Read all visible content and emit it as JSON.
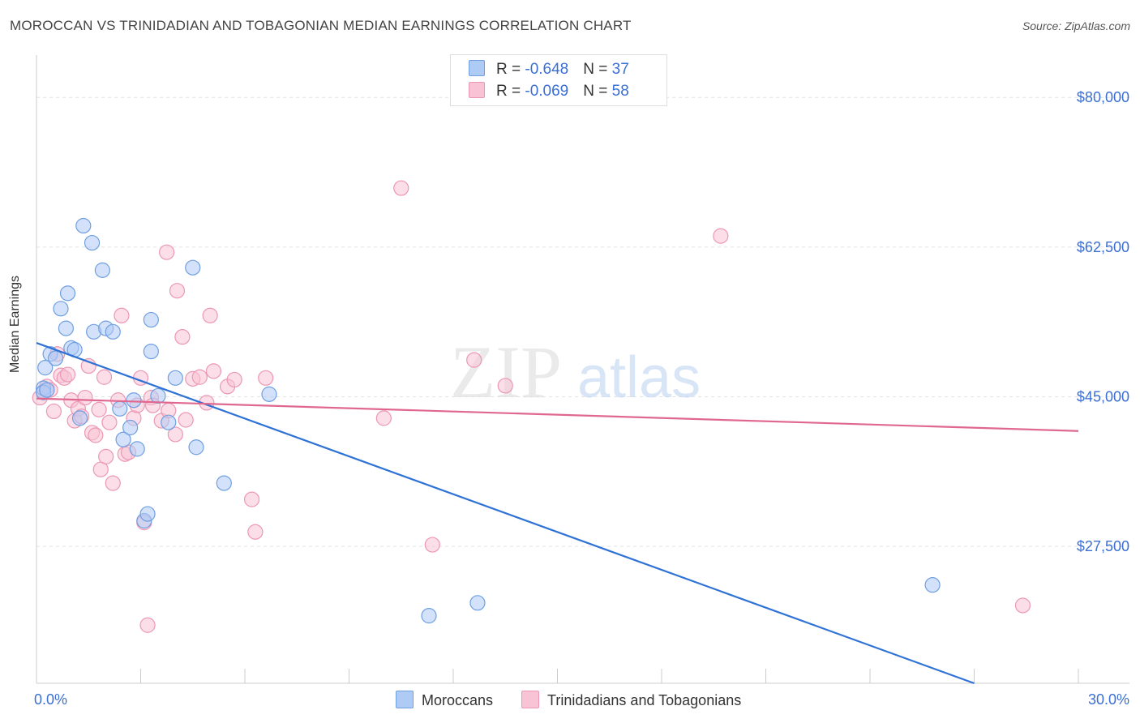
{
  "title": "MOROCCAN VS TRINIDADIAN AND TOBAGONIAN MEDIAN EARNINGS CORRELATION CHART",
  "source": "Source: ZipAtlas.com",
  "watermark": {
    "part1": "ZIP",
    "part2": "atlas"
  },
  "legend": {
    "moroccans": {
      "r_label": "R = ",
      "r_value": "-0.648",
      "n_label": "N = ",
      "n_value": "37"
    },
    "trinidadians": {
      "r_label": "R = ",
      "r_value": "-0.069",
      "n_label": "N = ",
      "n_value": "58"
    }
  },
  "bottom_legend": {
    "moroccans": "Moroccans",
    "trinidadians": "Trinidadians and Tobagonians"
  },
  "colors": {
    "blue_fill": "#aecbf5",
    "blue_stroke": "#6f9fe0",
    "blue_line": "#2f72d6",
    "pink_fill": "#f8c3d4",
    "pink_stroke": "#ec97b4",
    "pink_line": "#e0688f",
    "axis_text": "#3b6fd4",
    "grid": "#e2e2e2"
  },
  "chart_data": {
    "type": "scatter",
    "title": "MOROCCAN VS TRINIDADIAN AND TOBAGONIAN MEDIAN EARNINGS CORRELATION CHART",
    "xlabel": "",
    "ylabel": "Median Earnings",
    "xlim": [
      0,
      30
    ],
    "ylim": [
      11500,
      84000
    ],
    "x_tick_labels": [
      "0.0%",
      "30.0%"
    ],
    "y_ticks": [
      27500,
      45000,
      62500,
      80000
    ],
    "y_tick_labels": [
      "$27,500",
      "$45,000",
      "$62,500",
      "$80,000"
    ],
    "series": [
      {
        "name": "Moroccans",
        "r": -0.648,
        "n": 37,
        "trend": {
          "x": [
            0,
            27.0
          ],
          "y": [
            51300,
            11500
          ]
        },
        "points": [
          [
            0.2,
            46000
          ],
          [
            0.2,
            45500
          ],
          [
            0.25,
            48400
          ],
          [
            0.3,
            45800
          ],
          [
            0.4,
            50000
          ],
          [
            0.55,
            49500
          ],
          [
            0.7,
            55300
          ],
          [
            0.85,
            53000
          ],
          [
            0.9,
            57100
          ],
          [
            1.0,
            50700
          ],
          [
            1.1,
            50500
          ],
          [
            1.35,
            65000
          ],
          [
            1.6,
            63000
          ],
          [
            1.65,
            52600
          ],
          [
            1.9,
            59800
          ],
          [
            2.0,
            53000
          ],
          [
            2.2,
            52600
          ],
          [
            2.4,
            43600
          ],
          [
            2.5,
            40000
          ],
          [
            2.7,
            41400
          ],
          [
            2.8,
            44600
          ],
          [
            2.9,
            38900
          ],
          [
            3.1,
            30500
          ],
          [
            3.2,
            31300
          ],
          [
            3.3,
            54000
          ],
          [
            3.3,
            50300
          ],
          [
            3.5,
            45100
          ],
          [
            3.8,
            42000
          ],
          [
            4.0,
            47200
          ],
          [
            4.5,
            60100
          ],
          [
            4.6,
            39100
          ],
          [
            5.4,
            34900
          ],
          [
            6.7,
            45300
          ],
          [
            11.3,
            19400
          ],
          [
            12.7,
            20900
          ],
          [
            25.8,
            23000
          ],
          [
            1.25,
            42500
          ]
        ]
      },
      {
        "name": "Trinidadians and Tobagonians",
        "r": -0.069,
        "n": 58,
        "trend": {
          "x": [
            0,
            30.0
          ],
          "y": [
            44800,
            41000
          ]
        },
        "points": [
          [
            0.1,
            44900
          ],
          [
            0.2,
            45600
          ],
          [
            0.3,
            46200
          ],
          [
            0.4,
            45800
          ],
          [
            0.5,
            43300
          ],
          [
            0.6,
            50000
          ],
          [
            0.7,
            47500
          ],
          [
            0.8,
            47200
          ],
          [
            0.9,
            47600
          ],
          [
            1.0,
            44600
          ],
          [
            1.1,
            42200
          ],
          [
            1.2,
            43600
          ],
          [
            1.3,
            42700
          ],
          [
            1.4,
            44900
          ],
          [
            1.5,
            48600
          ],
          [
            1.6,
            40800
          ],
          [
            1.7,
            40500
          ],
          [
            1.8,
            43500
          ],
          [
            1.85,
            36500
          ],
          [
            1.95,
            47300
          ],
          [
            2.0,
            38000
          ],
          [
            2.1,
            42000
          ],
          [
            2.2,
            34900
          ],
          [
            2.35,
            44600
          ],
          [
            2.45,
            54500
          ],
          [
            2.55,
            38300
          ],
          [
            2.65,
            38500
          ],
          [
            2.8,
            42500
          ],
          [
            2.9,
            44000
          ],
          [
            3.0,
            47200
          ],
          [
            3.1,
            30300
          ],
          [
            3.2,
            18300
          ],
          [
            3.3,
            44900
          ],
          [
            3.35,
            44000
          ],
          [
            3.6,
            42200
          ],
          [
            3.75,
            61900
          ],
          [
            4.0,
            40600
          ],
          [
            4.05,
            57400
          ],
          [
            4.2,
            52000
          ],
          [
            4.3,
            42300
          ],
          [
            4.5,
            47100
          ],
          [
            4.7,
            47300
          ],
          [
            4.9,
            44300
          ],
          [
            5.0,
            54500
          ],
          [
            5.1,
            48000
          ],
          [
            5.5,
            46200
          ],
          [
            5.7,
            47000
          ],
          [
            6.2,
            33000
          ],
          [
            6.3,
            29200
          ],
          [
            6.6,
            47200
          ],
          [
            10.0,
            42500
          ],
          [
            10.5,
            69400
          ],
          [
            11.4,
            27700
          ],
          [
            12.6,
            49300
          ],
          [
            13.5,
            46300
          ],
          [
            19.7,
            63800
          ],
          [
            28.4,
            20600
          ],
          [
            3.8,
            43400
          ]
        ]
      }
    ]
  }
}
